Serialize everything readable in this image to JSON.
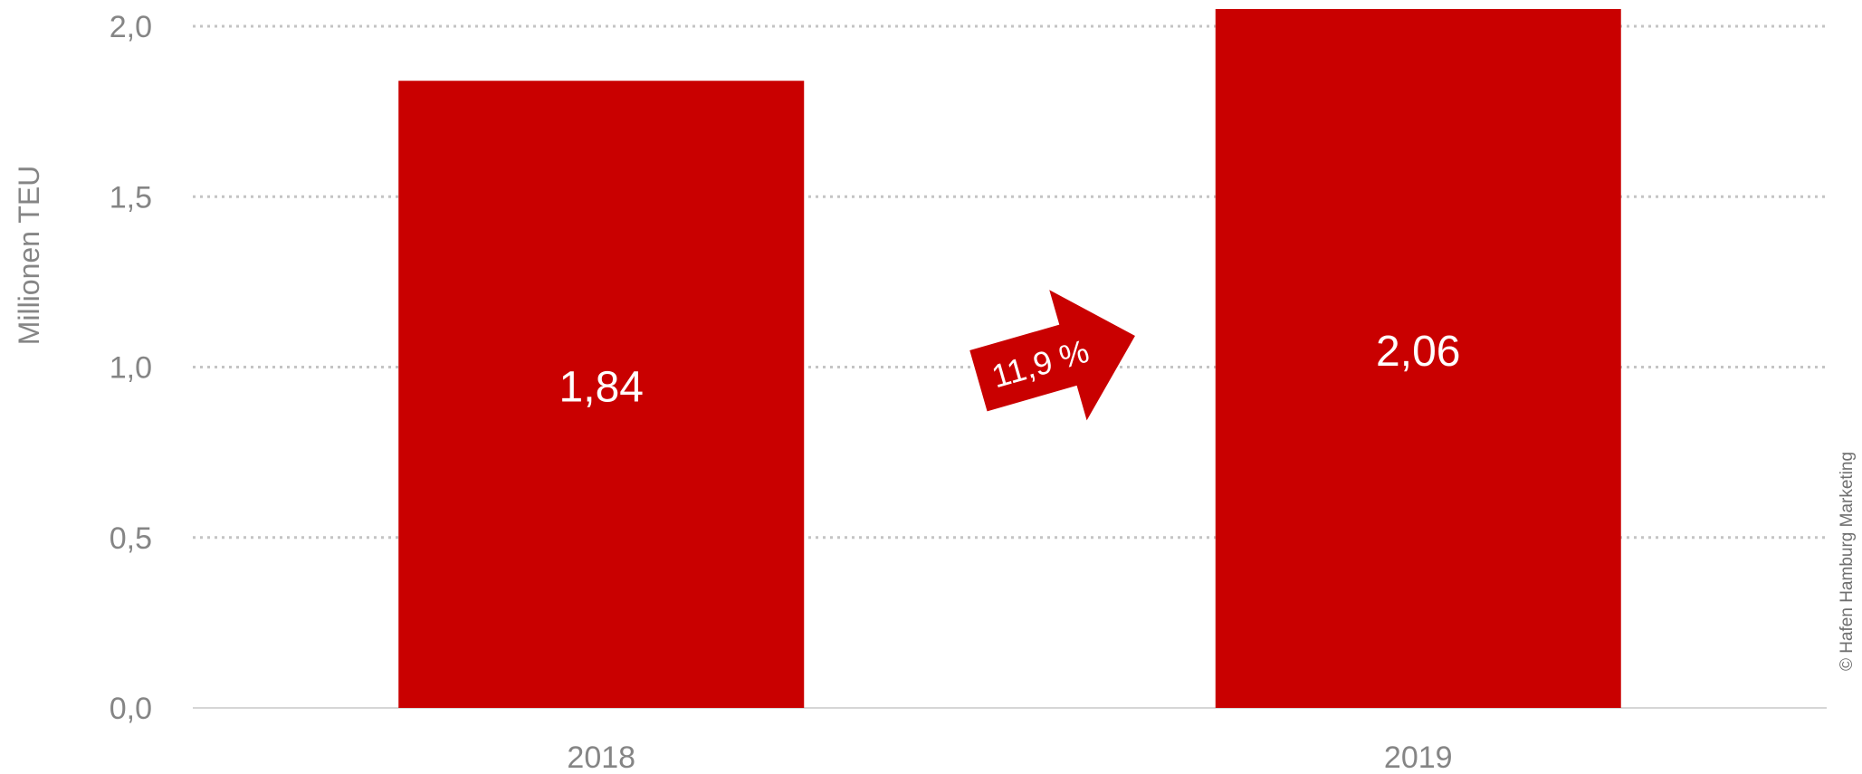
{
  "chart_data": {
    "type": "bar",
    "categories": [
      "2018",
      "2019"
    ],
    "values": [
      1.84,
      2.06
    ],
    "value_labels": [
      "1,84",
      "2,06"
    ],
    "ylabel": "Millionen TEU",
    "ylim": [
      0,
      2.0
    ],
    "yticks": [
      0,
      0.5,
      1.0,
      1.5,
      2.0
    ],
    "ytick_labels": [
      "0,0",
      "0,5",
      "1,0",
      "1,5",
      "2,0"
    ],
    "grid": true,
    "annotation": "11,9 %",
    "bar_color": "#c90000"
  },
  "credit": "© Hafen Hamburg Marketing"
}
